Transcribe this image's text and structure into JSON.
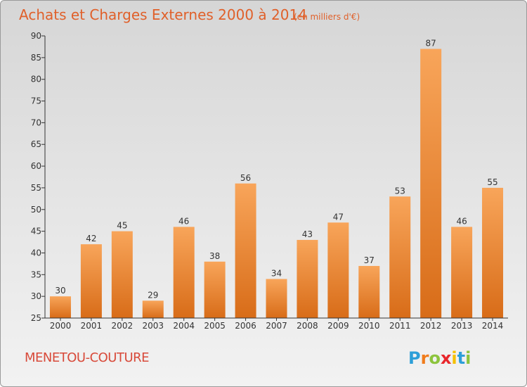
{
  "chart_data": {
    "type": "bar",
    "title": "Achats et Charges Externes 2000 à 2014",
    "subtitle": "(en milliers d'€)",
    "categories": [
      "2000",
      "2001",
      "2002",
      "2003",
      "2004",
      "2005",
      "2006",
      "2007",
      "2008",
      "2009",
      "2010",
      "2011",
      "2012",
      "2013",
      "2014"
    ],
    "values": [
      30,
      42,
      45,
      29,
      46,
      38,
      56,
      34,
      43,
      47,
      37,
      53,
      87,
      46,
      55
    ],
    "value_labels": [
      "30",
      "42",
      "45",
      "29",
      "46",
      "38",
      "56",
      "34",
      "43",
      "47",
      "37",
      "53",
      "87",
      "46",
      "55"
    ],
    "xlabel": "",
    "ylabel": "",
    "ylim": [
      25,
      90
    ],
    "yticks": [
      "25",
      "30",
      "35",
      "40",
      "45",
      "50",
      "55",
      "60",
      "65",
      "70",
      "75",
      "80",
      "85",
      "90"
    ],
    "grid": false,
    "legend": "none",
    "bar_color": "#f08a30"
  },
  "footer": {
    "commune": "MENETOU-COUTURE",
    "logo": "Proxiti",
    "logo_letters": [
      "P",
      "r",
      "o",
      "x",
      "i",
      "t",
      "i"
    ],
    "logo_colors": [
      "#2d9fd8",
      "#f07c1c",
      "#8cc43c",
      "#e8262c",
      "#f5c000",
      "#2d9fd8",
      "#8cc43c"
    ]
  }
}
